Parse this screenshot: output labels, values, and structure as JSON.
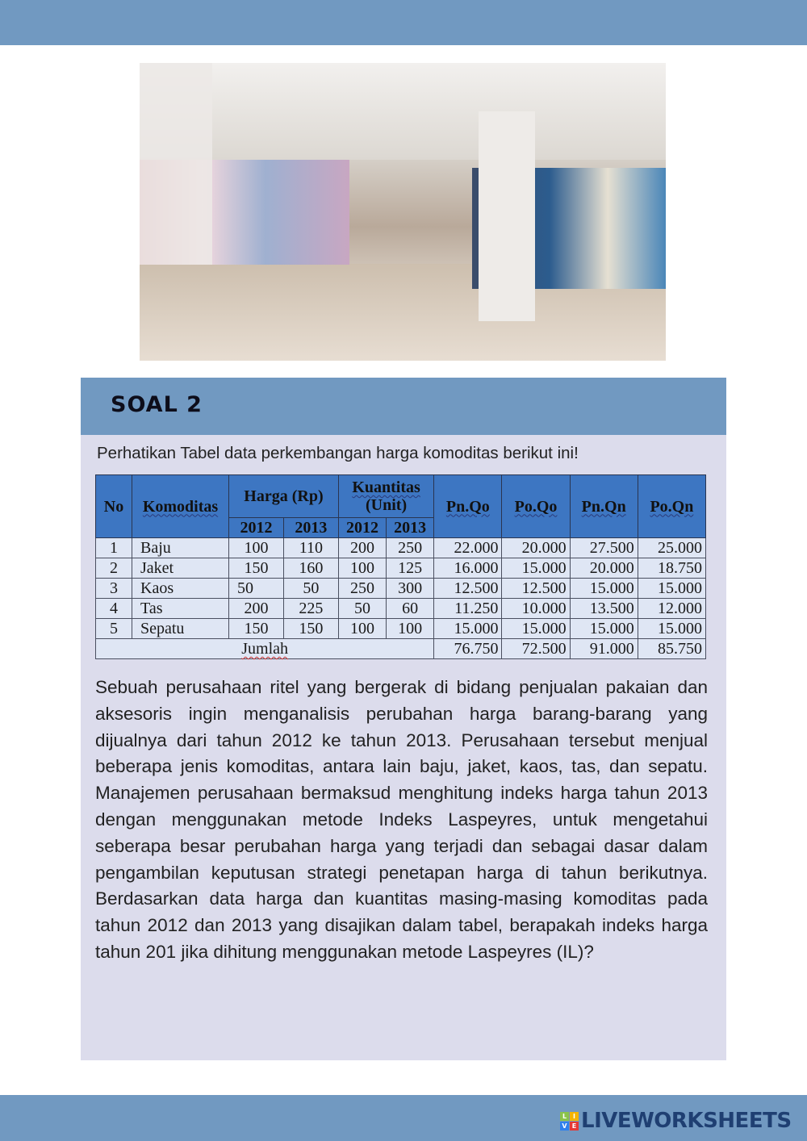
{
  "colors": {
    "band": "#7199c1",
    "card": "#dcdcec",
    "table_header": "#3d76c2",
    "table_body": "#dfe6f4"
  },
  "photo": {
    "description_icon": "store-photo"
  },
  "card": {
    "title": "SOAL 2",
    "intro": "Perhatikan Tabel data perkembangan harga komoditas berikut ini!",
    "table": {
      "headers": {
        "no": "No",
        "komoditas": "Komoditas",
        "harga": "Harga (Rp)",
        "kuantitas_1": "Kuantitas",
        "kuantitas_2": "(Unit)",
        "pnqo": "Pn.Qo",
        "poqo": "Po.Qo",
        "pnqn": "Pn.Qn",
        "poqn": "Po.Qn",
        "y1": "2012",
        "y2": "2013",
        "y3": "2012",
        "y4": "2013"
      },
      "rows": [
        [
          "1",
          "Baju",
          "100",
          "110",
          "200",
          "250",
          "22.000",
          "20.000",
          "27.500",
          "25.000"
        ],
        [
          "2",
          "Jaket",
          "150",
          "160",
          "100",
          "125",
          "16.000",
          "15.000",
          "20.000",
          "18.750"
        ],
        [
          "3",
          "Kaos",
          "50",
          "50",
          "250",
          "300",
          "12.500",
          "12.500",
          "15.000",
          "15.000"
        ],
        [
          "4",
          "Tas",
          "200",
          "225",
          "50",
          "60",
          "11.250",
          "10.000",
          "13.500",
          "12.000"
        ],
        [
          "5",
          "Sepatu",
          "150",
          "150",
          "100",
          "100",
          "15.000",
          "15.000",
          "15.000",
          "15.000"
        ]
      ],
      "total": {
        "label": "Jumlah",
        "values": [
          "76.750",
          "72.500",
          "91.000",
          "85.750"
        ]
      }
    },
    "body": "Sebuah perusahaan ritel yang bergerak di bidang penjualan pakaian dan aksesoris ingin menganalisis perubahan harga barang-barang yang dijualnya dari tahun 2012 ke tahun 2013. Perusahaan tersebut menjual beberapa jenis komoditas, antara lain baju, jaket, kaos, tas, dan sepatu. Manajemen perusahaan bermaksud menghitung indeks harga tahun 2013 dengan menggunakan metode Indeks Laspeyres, untuk mengetahui seberapa besar perubahan harga yang terjadi dan sebagai dasar dalam pengambilan keputusan strategi penetapan harga di tahun berikutnya. Berdasarkan data harga dan kuantitas masing-masing komoditas pada tahun 2012 dan 2013 yang disajikan dalam tabel, berapakah indeks harga tahun 201 jika dihitung menggunakan metode Laspeyres (IL)?"
  },
  "footer": {
    "logo_text": "LIVEWORKSHEETS",
    "logo_letters": [
      "L",
      "I",
      "V",
      "E"
    ]
  }
}
